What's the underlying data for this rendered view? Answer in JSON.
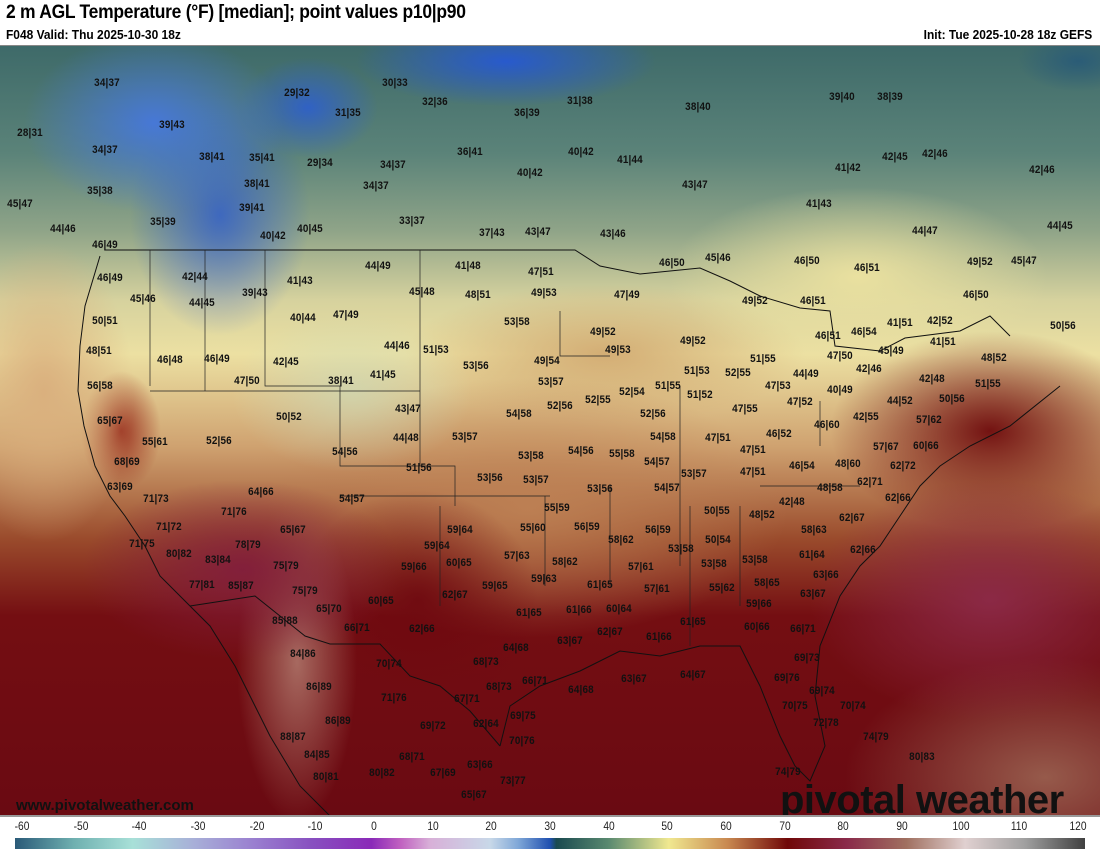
{
  "header": {
    "title": "2 m AGL Temperature (°F) [median]; point values p10|p90",
    "valid": "F048 Valid: Thu 2025-10-30 18z",
    "init": "Init: Tue 2025-10-28 18z GEFS"
  },
  "watermark": {
    "url": "www.pivotalweather.com",
    "logo": "pivotal weather"
  },
  "colorbar": {
    "unit": "°F",
    "ticks": [
      "-60",
      "-50",
      "-40",
      "-30",
      "-20",
      "-10",
      "0",
      "10",
      "20",
      "30",
      "40",
      "50",
      "60",
      "70",
      "80",
      "90",
      "100",
      "110",
      "120"
    ]
  },
  "points": [
    "34|37",
    "29|32",
    "31|35",
    "39|43",
    "28|31",
    "34|37",
    "38|41",
    "35|41",
    "29|34",
    "35|38",
    "38|41",
    "45|47",
    "39|41",
    "35|39",
    "44|46",
    "40|45",
    "40|42",
    "46|49",
    "42|44",
    "46|49",
    "41|43",
    "45|46",
    "39|43",
    "44|45",
    "40|44",
    "47|49",
    "50|51",
    "48|51",
    "46|48",
    "46|49",
    "42|45",
    "47|50",
    "38|41",
    "56|58",
    "65|67",
    "50|52",
    "30|33",
    "32|36",
    "31|38",
    "36|39",
    "38|40",
    "36|41",
    "40|42",
    "34|37",
    "41|44",
    "40|42",
    "34|37",
    "43|47",
    "33|37",
    "37|43",
    "43|47",
    "43|46",
    "44|49",
    "41|48",
    "47|51",
    "46|50",
    "45|46",
    "45|48",
    "48|51",
    "49|53",
    "47|49",
    "53|58",
    "49|52",
    "44|46",
    "51|53",
    "49|53",
    "49|52",
    "53|56",
    "49|54",
    "41|45",
    "51|53",
    "52|55",
    "53|57",
    "51|55",
    "52|54",
    "51|52",
    "52|55",
    "43|47",
    "52|56",
    "54|58",
    "52|56",
    "39|40",
    "38|39",
    "42|45",
    "42|46",
    "41|42",
    "42|46",
    "41|43",
    "44|47",
    "44|45",
    "46|50",
    "46|51",
    "49|52",
    "45|47",
    "46|50",
    "49|52",
    "46|51",
    "41|51",
    "42|52",
    "50|56",
    "46|51",
    "41|51",
    "46|54",
    "45|49",
    "51|55",
    "47|50",
    "48|52",
    "44|49",
    "42|46",
    "47|53",
    "51|55",
    "40|49",
    "42|48",
    "47|52",
    "50|56",
    "44|52",
    "46|60",
    "42|55",
    "57|62",
    "47|55",
    "44|48",
    "53|57",
    "54|58",
    "47|51",
    "53|58",
    "54|56",
    "55|58",
    "54|57",
    "51|56",
    "53|57",
    "53|56",
    "53|57",
    "53|56",
    "54|57",
    "55|59",
    "50|55",
    "59|64",
    "55|60",
    "56|59",
    "56|59",
    "50|54",
    "58|62",
    "59|64",
    "57|63",
    "58|62",
    "53|58",
    "59|66",
    "60|65",
    "57|61",
    "53|58",
    "59|65",
    "59|63",
    "61|65",
    "57|61",
    "55|62",
    "60|65",
    "62|67",
    "61|65",
    "61|66",
    "60|64",
    "61|65",
    "62|66",
    "63|67",
    "62|67",
    "61|66",
    "64|68",
    "70|74",
    "68|73",
    "66|71",
    "64|68",
    "63|67",
    "64|67",
    "68|73",
    "71|76",
    "67|71",
    "69|75",
    "69|72",
    "62|64",
    "70|76",
    "68|71",
    "63|66",
    "80|82",
    "67|69",
    "73|77",
    "65|67",
    "55|61",
    "52|56",
    "54|56",
    "68|69",
    "63|69",
    "64|66",
    "54|57",
    "71|73",
    "71|76",
    "71|72",
    "65|67",
    "71|75",
    "78|79",
    "80|82",
    "83|84",
    "75|79",
    "77|81",
    "85|87",
    "75|79",
    "65|70",
    "85|88",
    "66|71",
    "84|86",
    "86|89",
    "86|89",
    "88|87",
    "84|85",
    "80|81",
    "46|52",
    "57|67",
    "60|66",
    "47|51",
    "47|51",
    "46|54",
    "48|60",
    "62|72",
    "62|71",
    "48|58",
    "62|66",
    "42|48",
    "48|52",
    "62|67",
    "58|63",
    "62|66",
    "61|64",
    "53|58",
    "63|66",
    "58|65",
    "63|67",
    "59|66",
    "60|66",
    "66|71",
    "69|73",
    "69|76",
    "69|74",
    "70|74",
    "70|75",
    "72|78",
    "74|79",
    "80|83",
    "74|79"
  ]
}
